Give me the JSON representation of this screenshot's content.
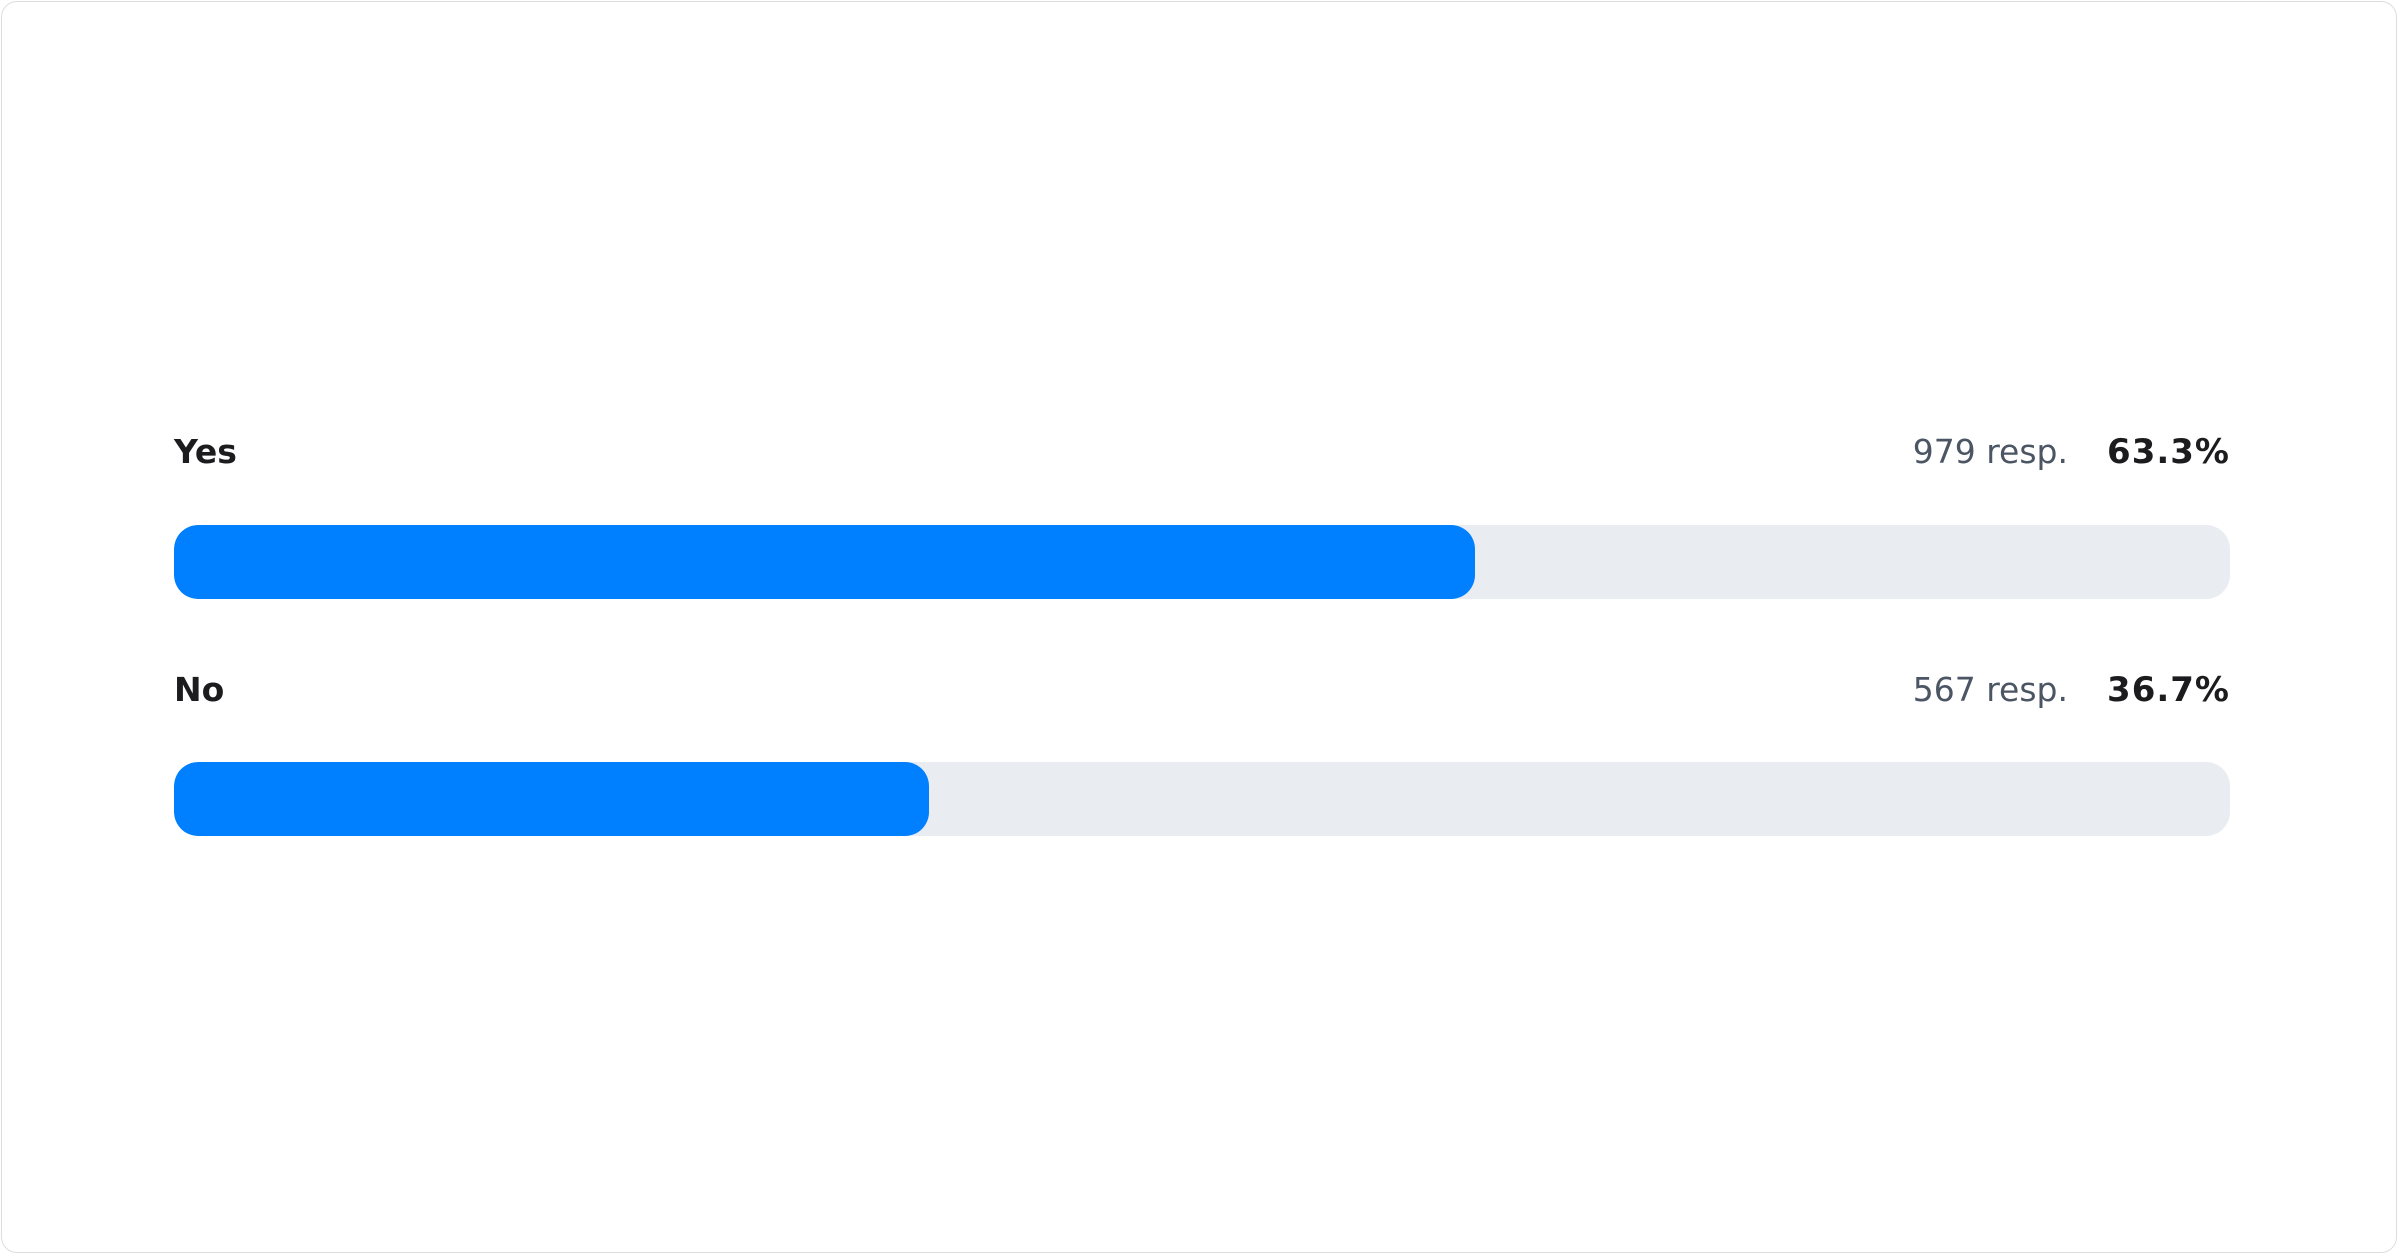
{
  "chart_data": {
    "type": "bar",
    "orientation": "horizontal",
    "categories": [
      "Yes",
      "No"
    ],
    "rows": [
      {
        "label": "Yes",
        "responses": 979,
        "responses_text": "979 resp.",
        "percent": 63.3,
        "percent_text": "63.3%"
      },
      {
        "label": "No",
        "responses": 567,
        "responses_text": "567 resp.",
        "percent": 36.7,
        "percent_text": "36.7%"
      }
    ],
    "xlim": [
      0,
      100
    ],
    "colors": {
      "fill": "#0080FF",
      "track": "#E9ECF0"
    }
  }
}
